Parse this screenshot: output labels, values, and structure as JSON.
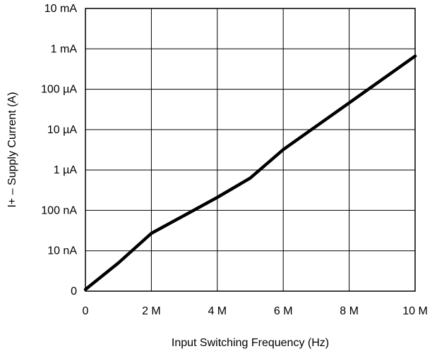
{
  "chart_data": {
    "type": "line",
    "title": "",
    "xlabel": "Input Switching Frequency (Hz)",
    "ylabel": "I+ – Supply Current (A)",
    "x_scale": "linear",
    "y_scale": "log",
    "xlim": [
      0,
      10000000
    ],
    "ylim": [
      1e-09,
      0.01
    ],
    "grid": true,
    "x_ticks": [
      {
        "value": 0,
        "label": "0"
      },
      {
        "value": 2000000,
        "label": "2 M"
      },
      {
        "value": 4000000,
        "label": "4 M"
      },
      {
        "value": 6000000,
        "label": "6 M"
      },
      {
        "value": 8000000,
        "label": "8 M"
      },
      {
        "value": 10000000,
        "label": "10 M"
      }
    ],
    "y_ticks": [
      {
        "value": 1e-09,
        "label": "0"
      },
      {
        "value": 1e-08,
        "label": "10 nA"
      },
      {
        "value": 1e-07,
        "label": "100 nA"
      },
      {
        "value": 1e-06,
        "label": "1 µA"
      },
      {
        "value": 1e-05,
        "label": "10 µA"
      },
      {
        "value": 0.0001,
        "label": "100 µA"
      },
      {
        "value": 0.001,
        "label": "1 mA"
      },
      {
        "value": 0.01,
        "label": "10 mA"
      }
    ],
    "series": [
      {
        "color": "#000000",
        "points": [
          {
            "x": 0,
            "y": 1.1e-09
          },
          {
            "x": 1000000,
            "y": 5e-09
          },
          {
            "x": 2000000,
            "y": 2.7e-08
          },
          {
            "x": 4000000,
            "y": 2.1e-07
          },
          {
            "x": 5000000,
            "y": 6.3e-07
          },
          {
            "x": 6000000,
            "y": 3.2e-06
          },
          {
            "x": 8000000,
            "y": 4.6e-05
          },
          {
            "x": 10000000,
            "y": 0.00066
          }
        ]
      }
    ]
  }
}
